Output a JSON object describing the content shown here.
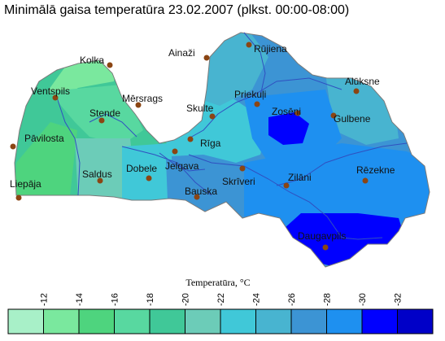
{
  "title": "Minimālā gaisa temperatūra 23.02.2007 (plkst. 00:00-08:00)",
  "cities": [
    {
      "name": "Kolka"
    },
    {
      "name": "Ainaži"
    },
    {
      "name": "Rūjiena"
    },
    {
      "name": "Ventspils"
    },
    {
      "name": "Mērsrags"
    },
    {
      "name": "Stende"
    },
    {
      "name": "Priekuļi"
    },
    {
      "name": "Alūksne"
    },
    {
      "name": "Skulte"
    },
    {
      "name": "Zosēni"
    },
    {
      "name": "Gulbene"
    },
    {
      "name": "Pāvilosta"
    },
    {
      "name": "Rīga"
    },
    {
      "name": "Dobele"
    },
    {
      "name": "Jelgava"
    },
    {
      "name": "Rēzekne"
    },
    {
      "name": "Saldus"
    },
    {
      "name": "Skrīveri"
    },
    {
      "name": "Zilāni"
    },
    {
      "name": "Liepāja"
    },
    {
      "name": "Bauska"
    },
    {
      "name": "Daugavpils"
    }
  ],
  "legend": {
    "title": "Temperatūra, °C",
    "ticks": [
      "-12",
      "-14",
      "-16",
      "-18",
      "-20",
      "-22",
      "-24",
      "-26",
      "-28",
      "-30",
      "-32"
    ],
    "colors": [
      "#a8f0c8",
      "#7ae89e",
      "#4ed47e",
      "#58d8a0",
      "#40c898",
      "#6cccb8",
      "#40c8d8",
      "#48b4d0",
      "#3c94d4",
      "#1e90f0",
      "#0000ff",
      "#0000c8"
    ]
  },
  "colors": {
    "city_marker": "#8b4513",
    "river": "#3050c0",
    "border": "#7a7a7a"
  }
}
